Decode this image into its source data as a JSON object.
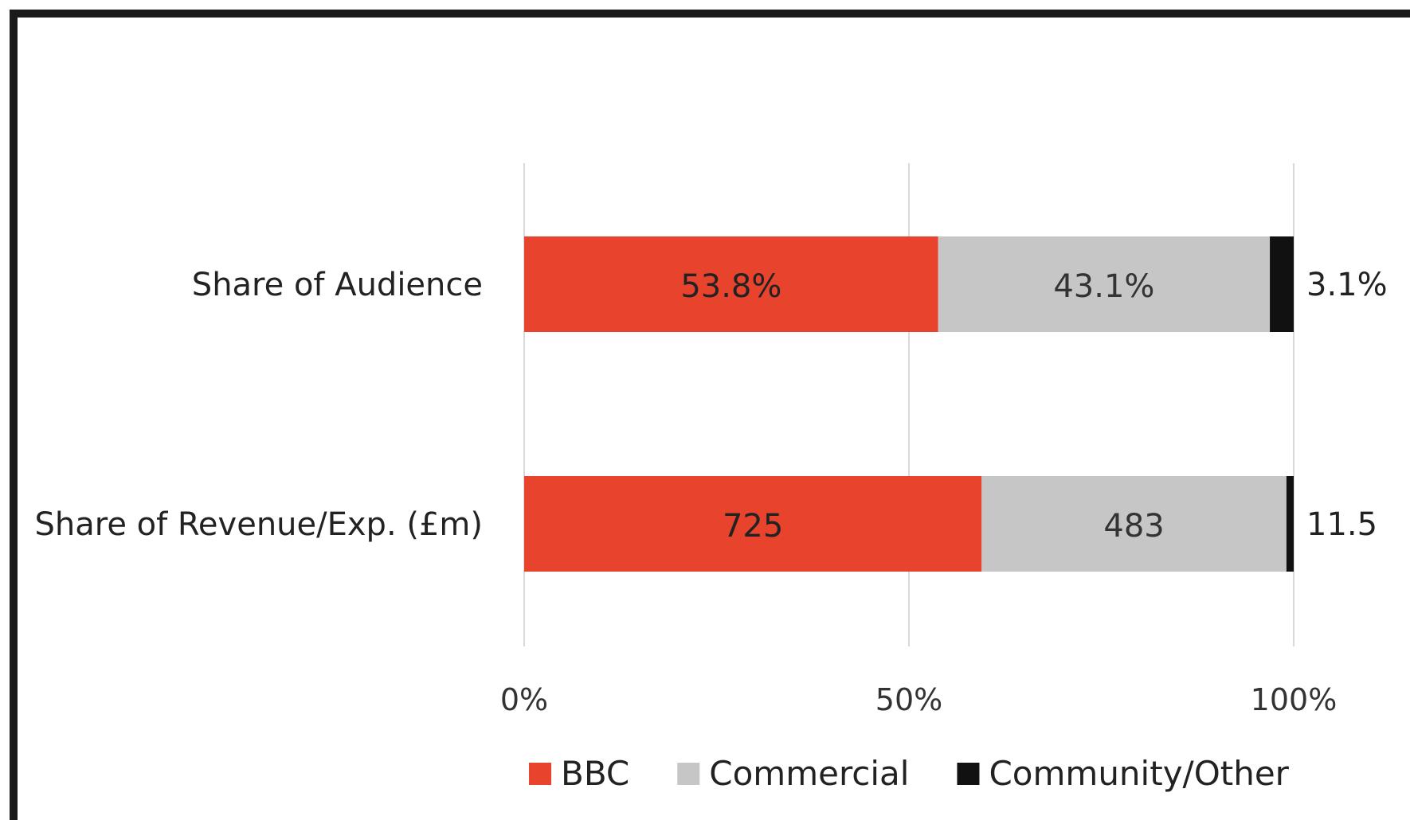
{
  "chart_data": {
    "type": "bar",
    "orientation": "horizontal",
    "stacked": "percent",
    "categories": [
      "Share of Audience",
      "Share of Revenue/Exp. (£m)"
    ],
    "series": [
      {
        "name": "BBC",
        "color": "#e8432d",
        "values": [
          53.8,
          725
        ],
        "labels": [
          "53.8%",
          "725"
        ],
        "label_color": "#222222"
      },
      {
        "name": "Commercial",
        "color": "#c6c6c6",
        "values": [
          43.1,
          483
        ],
        "labels": [
          "43.1%",
          "483"
        ],
        "label_color": "#333333"
      },
      {
        "name": "Community/Other",
        "color": "#111111",
        "values": [
          3.1,
          11.5
        ],
        "labels": [
          "3.1%",
          "11.5"
        ],
        "label_color": "#222222"
      }
    ],
    "xaxis": {
      "ticks": [
        "0%",
        "50%",
        "100%"
      ],
      "tick_values": [
        0,
        50,
        100
      ],
      "range": [
        0,
        100
      ]
    },
    "grid": true,
    "legend": "bottom"
  }
}
